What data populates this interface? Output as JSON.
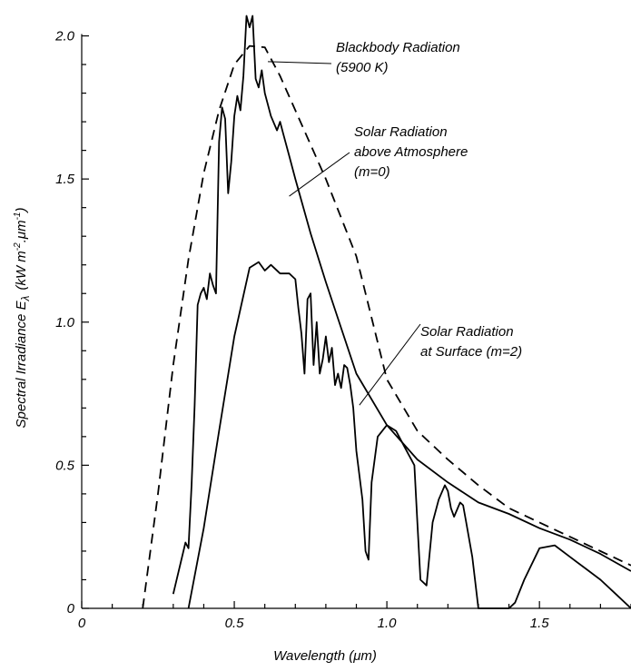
{
  "chart_data": {
    "type": "line",
    "xlabel": "Wavelength (μm)",
    "ylabel": "Spectral Irradiance E",
    "ylabel_subscript": "λ",
    "ylabel_unit": "(kW m",
    "ylabel_unit_exp1": "-2",
    "ylabel_unit_mid": ".μm",
    "ylabel_unit_exp2": "-1",
    "ylabel_unit_end": ")",
    "xlim": [
      0,
      1.8
    ],
    "ylim": [
      0,
      2.1
    ],
    "x_ticks": [
      {
        "value": 0,
        "label": "0"
      },
      {
        "value": 0.5,
        "label": "0.5"
      },
      {
        "value": 1.0,
        "label": "1.0"
      },
      {
        "value": 1.5,
        "label": "1.5"
      }
    ],
    "y_ticks": [
      {
        "value": 0,
        "label": "0"
      },
      {
        "value": 0.5,
        "label": "0.5"
      },
      {
        "value": 1.0,
        "label": "1.0"
      },
      {
        "value": 1.5,
        "label": "1.5"
      },
      {
        "value": 2.0,
        "label": "2.0"
      }
    ],
    "minor_tick_step": 0.1,
    "grid": false,
    "series": [
      {
        "key": "blackbody",
        "style": "dashed",
        "x": [
          0.2,
          0.25,
          0.3,
          0.35,
          0.4,
          0.45,
          0.5,
          0.55,
          0.6,
          0.65,
          0.7,
          0.8,
          0.9,
          1.0,
          1.1,
          1.2,
          1.3,
          1.4,
          1.5,
          1.6,
          1.7,
          1.8
        ],
        "y": [
          0.0,
          0.4,
          0.85,
          1.22,
          1.52,
          1.74,
          1.9,
          1.965,
          1.96,
          1.86,
          1.74,
          1.5,
          1.23,
          0.8,
          0.62,
          0.52,
          0.43,
          0.35,
          0.3,
          0.25,
          0.2,
          0.15
        ]
      },
      {
        "key": "solar_above",
        "style": "solid",
        "x": [
          0.3,
          0.34,
          0.35,
          0.36,
          0.37,
          0.38,
          0.39,
          0.4,
          0.41,
          0.42,
          0.43,
          0.44,
          0.45,
          0.46,
          0.47,
          0.48,
          0.49,
          0.5,
          0.51,
          0.52,
          0.53,
          0.54,
          0.55,
          0.56,
          0.57,
          0.58,
          0.59,
          0.6,
          0.62,
          0.64,
          0.65,
          0.66,
          0.68,
          0.7,
          0.75,
          0.8,
          0.85,
          0.9,
          1.0,
          1.1,
          1.2,
          1.3,
          1.4,
          1.5,
          1.6,
          1.7,
          1.8
        ],
        "y": [
          0.05,
          0.23,
          0.21,
          0.43,
          0.71,
          1.06,
          1.1,
          1.12,
          1.08,
          1.17,
          1.13,
          1.1,
          1.63,
          1.75,
          1.71,
          1.45,
          1.56,
          1.72,
          1.79,
          1.74,
          1.86,
          2.07,
          2.03,
          2.07,
          1.85,
          1.82,
          1.88,
          1.8,
          1.72,
          1.67,
          1.7,
          1.66,
          1.58,
          1.5,
          1.31,
          1.14,
          0.98,
          0.82,
          0.64,
          0.52,
          0.44,
          0.37,
          0.33,
          0.28,
          0.24,
          0.19,
          0.13
        ]
      },
      {
        "key": "solar_surface",
        "style": "solid",
        "x": [
          0.35,
          0.4,
          0.45,
          0.5,
          0.55,
          0.58,
          0.6,
          0.62,
          0.65,
          0.68,
          0.7,
          0.71,
          0.72,
          0.73,
          0.74,
          0.75,
          0.76,
          0.77,
          0.78,
          0.79,
          0.8,
          0.81,
          0.82,
          0.83,
          0.84,
          0.85,
          0.86,
          0.87,
          0.88,
          0.89,
          0.9,
          0.92,
          0.93,
          0.94,
          0.95,
          0.97,
          1.0,
          1.03,
          1.05,
          1.07,
          1.08,
          1.09,
          1.1,
          1.11,
          1.13,
          1.15,
          1.17,
          1.19,
          1.2,
          1.21,
          1.22,
          1.24,
          1.25,
          1.26,
          1.28,
          1.3,
          1.32,
          1.33,
          1.34,
          1.36,
          1.37,
          1.38,
          1.4,
          1.42,
          1.45,
          1.5,
          1.55,
          1.6,
          1.65,
          1.7,
          1.75,
          1.8
        ],
        "y": [
          0.0,
          0.28,
          0.62,
          0.95,
          1.19,
          1.21,
          1.18,
          1.2,
          1.17,
          1.17,
          1.15,
          1.05,
          0.96,
          0.82,
          1.08,
          1.1,
          0.85,
          1.0,
          0.82,
          0.87,
          0.95,
          0.86,
          0.91,
          0.78,
          0.82,
          0.77,
          0.85,
          0.84,
          0.78,
          0.7,
          0.55,
          0.38,
          0.2,
          0.17,
          0.44,
          0.6,
          0.64,
          0.62,
          0.58,
          0.54,
          0.52,
          0.5,
          0.3,
          0.1,
          0.08,
          0.3,
          0.38,
          0.43,
          0.41,
          0.35,
          0.32,
          0.37,
          0.36,
          0.3,
          0.18,
          0.0,
          0.0,
          0.0,
          0.0,
          0.0,
          0.0,
          0.0,
          0.0,
          0.02,
          0.1,
          0.21,
          0.22,
          0.18,
          0.14,
          0.1,
          0.05,
          0.0
        ]
      }
    ],
    "annotations": [
      {
        "key": "blackbody",
        "lines": [
          "Blackbody Radiation",
          "(5900 K)"
        ],
        "target": [
          0.61,
          1.91
        ]
      },
      {
        "key": "above",
        "lines": [
          "Solar Radiation",
          "above Atmosphere",
          "(m=0)"
        ],
        "target": [
          0.68,
          1.44
        ]
      },
      {
        "key": "surface",
        "lines": [
          "Solar Radiation",
          "at Surface (m=2)"
        ],
        "target": [
          0.91,
          0.71
        ]
      }
    ]
  }
}
